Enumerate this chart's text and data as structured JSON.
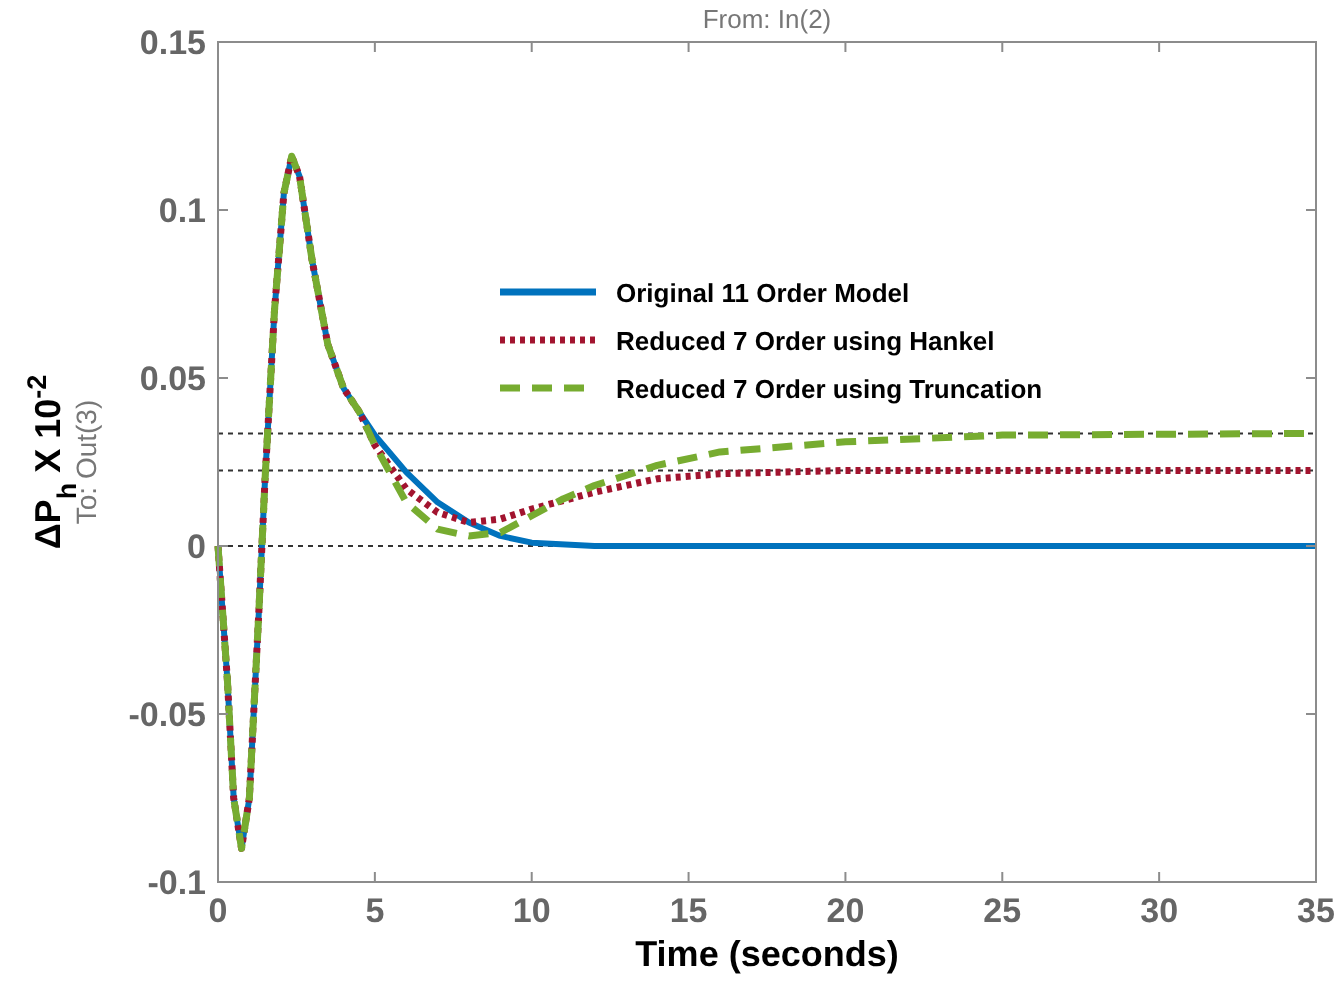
{
  "chart_data": {
    "type": "line",
    "title": "From: In(2)",
    "xlabel": "Time (seconds)",
    "ylabel": "ΔP$_{h}$ X 10$^{-2}$",
    "annotations": [
      "To: Out(3)"
    ],
    "xlim": [
      0,
      35
    ],
    "ylim": [
      -0.1,
      0.15
    ],
    "xticks": [
      0,
      5,
      10,
      15,
      20,
      25,
      30,
      35
    ],
    "yticks": [
      -0.1,
      -0.05,
      0,
      0.05,
      0.1,
      0.15
    ],
    "grid": false,
    "legend": "top right",
    "ref_lines": [
      {
        "axis": "y",
        "value": 0.0335,
        "label": null,
        "line_style": "dotted",
        "color": "#333333"
      },
      {
        "axis": "y",
        "value": 0.0225,
        "label": null,
        "line_style": "dotted",
        "color": "#333333"
      },
      {
        "axis": "y",
        "value": 0,
        "label": null,
        "line_style": "dotted",
        "color": "#333333"
      }
    ],
    "series": [
      {
        "name": "Original 11 Order Model",
        "color": "#0072bd",
        "line_style": "solid",
        "x": [
          0,
          0.3,
          0.5,
          0.75,
          1,
          1.3,
          1.5,
          1.8,
          2.1,
          2.35,
          2.6,
          3,
          3.5,
          4,
          4.5,
          5,
          6,
          7,
          8,
          9,
          10,
          12,
          15,
          20,
          35
        ],
        "values": [
          0,
          -0.04,
          -0.075,
          -0.09,
          -0.075,
          -0.02,
          0.02,
          0.07,
          0.105,
          0.116,
          0.11,
          0.085,
          0.06,
          0.047,
          0.04,
          0.033,
          0.022,
          0.013,
          0.007,
          0.003,
          0.001,
          0,
          0,
          0,
          0
        ]
      },
      {
        "name": "Reduced 7 Order using Hankel",
        "color": "#a2142f",
        "line_style": "dotted",
        "x": [
          0,
          0.3,
          0.5,
          0.75,
          1,
          1.3,
          1.5,
          1.8,
          2.1,
          2.35,
          2.6,
          3,
          3.5,
          4,
          4.5,
          5,
          6,
          7,
          8,
          9,
          10,
          12,
          14,
          16,
          20,
          35
        ],
        "values": [
          0,
          -0.04,
          -0.075,
          -0.09,
          -0.075,
          -0.02,
          0.02,
          0.07,
          0.105,
          0.116,
          0.11,
          0.085,
          0.06,
          0.047,
          0.04,
          0.03,
          0.017,
          0.01,
          0.007,
          0.008,
          0.011,
          0.016,
          0.02,
          0.0215,
          0.0225,
          0.0225
        ]
      },
      {
        "name": "Reduced 7 Order using Truncation",
        "color": "#77ac30",
        "line_style": "dashed",
        "x": [
          0,
          0.3,
          0.5,
          0.75,
          1,
          1.3,
          1.5,
          1.8,
          2.1,
          2.35,
          2.6,
          3,
          3.5,
          4,
          4.5,
          5,
          6,
          7,
          8,
          9,
          10,
          11,
          12,
          14,
          16,
          20,
          25,
          35
        ],
        "values": [
          0,
          -0.04,
          -0.075,
          -0.09,
          -0.075,
          -0.02,
          0.02,
          0.07,
          0.105,
          0.116,
          0.11,
          0.085,
          0.06,
          0.047,
          0.04,
          0.03,
          0.013,
          0.005,
          0.003,
          0.004,
          0.009,
          0.014,
          0.018,
          0.024,
          0.028,
          0.031,
          0.033,
          0.0335
        ]
      }
    ]
  }
}
